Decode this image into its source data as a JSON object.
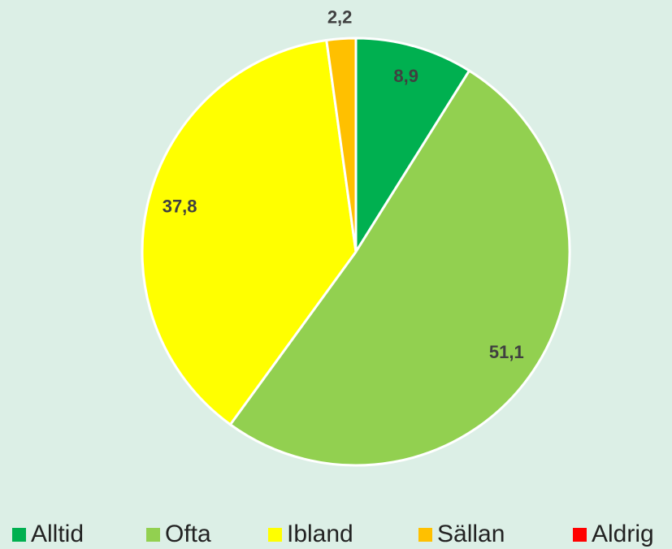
{
  "chart_data": {
    "type": "pie",
    "categories": [
      "Alltid",
      "Ofta",
      "Ibland",
      "Sällan",
      "Aldrig"
    ],
    "values": [
      8.9,
      51.1,
      37.8,
      2.2,
      0
    ],
    "value_labels": [
      "8,9",
      "51,1",
      "37,8",
      "2,2",
      null
    ],
    "colors": [
      "#00b050",
      "#92d050",
      "#ffff00",
      "#ffc000",
      "#ff0000"
    ],
    "legend": "bottom"
  }
}
